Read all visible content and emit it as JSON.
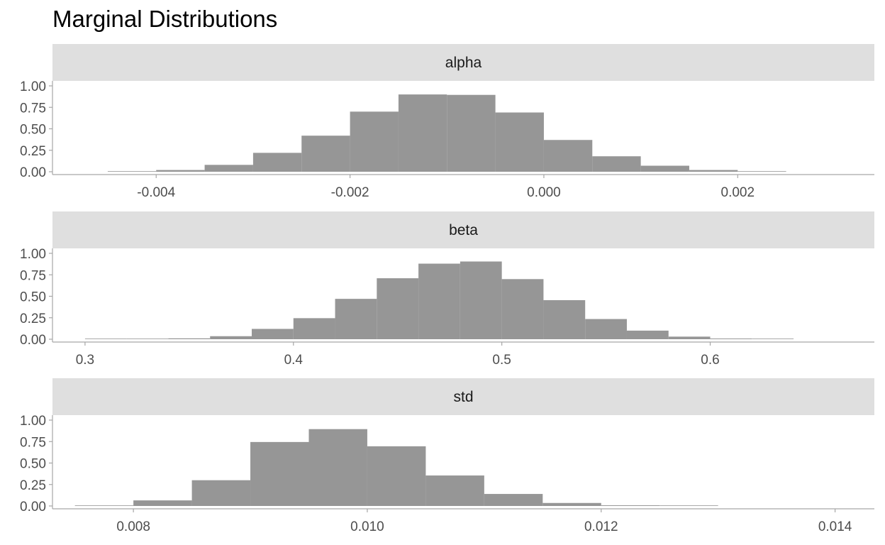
{
  "title": "Marginal Distributions",
  "colors": {
    "bar": "#969696",
    "strip": "#dfdfdf",
    "axis": "#a6a6a6",
    "text": "#4d4d4d"
  },
  "chart_data": [
    {
      "type": "bar",
      "panel": "alpha",
      "bin_edges": [
        -0.0045,
        -0.004,
        -0.0035,
        -0.003,
        -0.0025,
        -0.002,
        -0.0015,
        -0.001,
        -0.0005,
        0.0,
        0.0005,
        0.001,
        0.0015,
        0.002,
        0.0025
      ],
      "values": [
        0.004,
        0.02,
        0.08,
        0.22,
        0.42,
        0.7,
        0.9,
        0.895,
        0.69,
        0.37,
        0.18,
        0.07,
        0.02,
        0.004
      ],
      "xlim": [
        -0.00507,
        0.00341
      ],
      "ylim": [
        0,
        1
      ],
      "x_ticks": [
        -0.004,
        -0.002,
        0.0,
        0.002
      ],
      "x_tick_labels": [
        "-0.004",
        "-0.002",
        "0.000",
        "0.002"
      ],
      "y_ticks": [
        0,
        0.25,
        0.5,
        0.75,
        1.0
      ],
      "y_tick_labels": [
        "0.00",
        "0.25",
        "0.50",
        "0.75",
        "1.00"
      ]
    },
    {
      "type": "bar",
      "panel": "beta",
      "bin_edges": [
        0.3,
        0.32,
        0.34,
        0.36,
        0.38,
        0.4,
        0.42,
        0.44,
        0.46,
        0.48,
        0.5,
        0.52,
        0.54,
        0.56,
        0.58,
        0.6,
        0.62,
        0.64
      ],
      "values": [
        0.002,
        0.004,
        0.01,
        0.035,
        0.12,
        0.245,
        0.47,
        0.71,
        0.88,
        0.905,
        0.7,
        0.455,
        0.235,
        0.1,
        0.03,
        0.008,
        0.002
      ],
      "xlim": [
        0.28438,
        0.67877
      ],
      "ylim": [
        0,
        1
      ],
      "x_ticks": [
        0.3,
        0.4,
        0.5,
        0.6
      ],
      "x_tick_labels": [
        "0.3",
        "0.4",
        "0.5",
        "0.6"
      ],
      "y_ticks": [
        0,
        0.25,
        0.5,
        0.75,
        1.0
      ],
      "y_tick_labels": [
        "0.00",
        "0.25",
        "0.50",
        "0.75",
        "1.00"
      ]
    },
    {
      "type": "bar",
      "panel": "std",
      "bin_edges": [
        0.0075,
        0.008,
        0.0085,
        0.009,
        0.0095,
        0.01,
        0.0105,
        0.011,
        0.0115,
        0.012,
        0.0125,
        0.013
      ],
      "values": [
        0.004,
        0.065,
        0.3,
        0.745,
        0.895,
        0.695,
        0.355,
        0.14,
        0.035,
        0.008,
        0.002
      ],
      "xlim": [
        0.007308,
        0.014336
      ],
      "ylim": [
        0,
        1
      ],
      "x_ticks": [
        0.008,
        0.01,
        0.012,
        0.014
      ],
      "x_tick_labels": [
        "0.008",
        "0.010",
        "0.012",
        "0.014"
      ],
      "y_ticks": [
        0,
        0.25,
        0.5,
        0.75,
        1.0
      ],
      "y_tick_labels": [
        "0.00",
        "0.25",
        "0.50",
        "0.75",
        "1.00"
      ]
    }
  ]
}
